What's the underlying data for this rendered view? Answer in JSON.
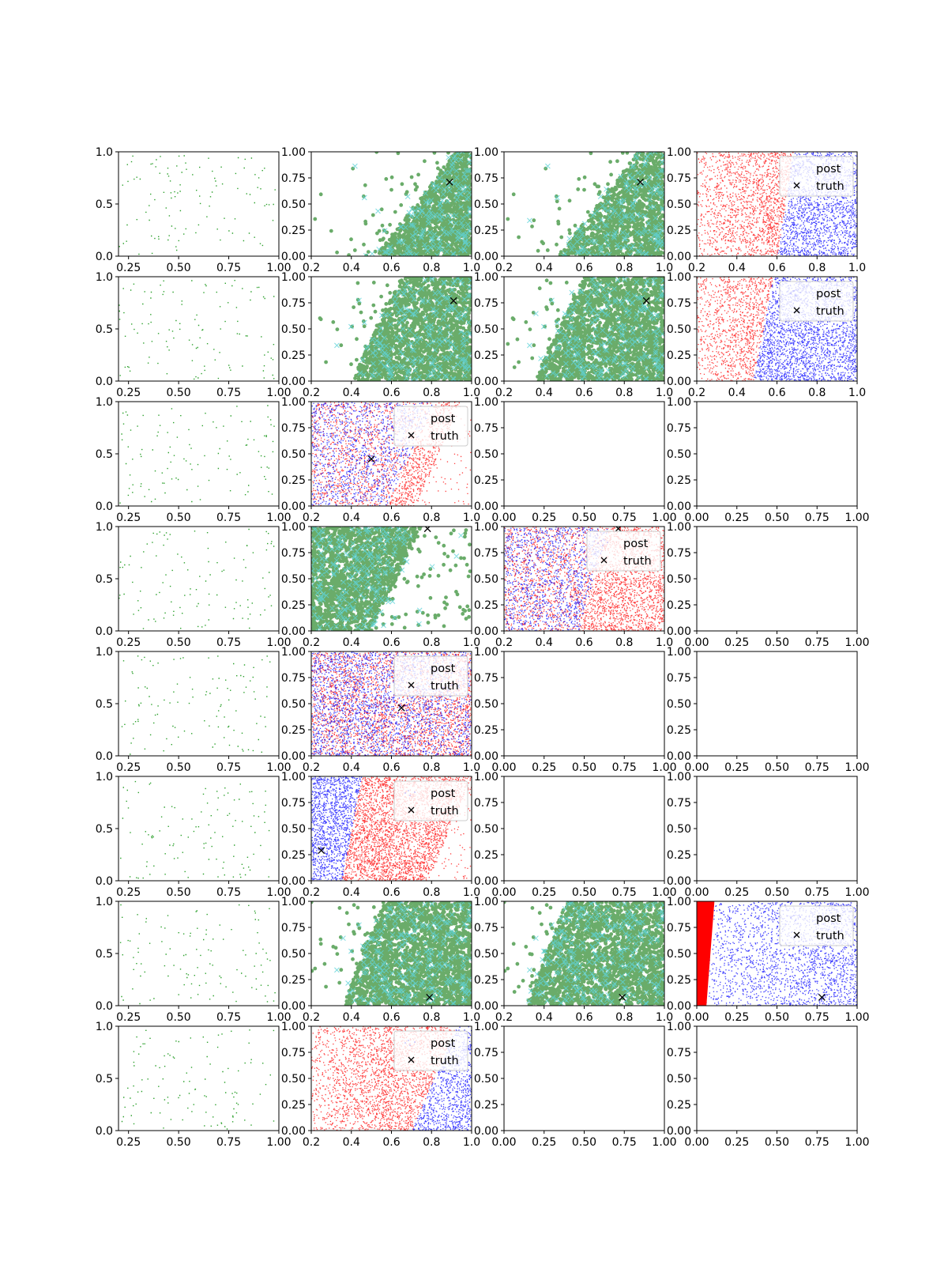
{
  "figure": {
    "rows": 8,
    "cols": 4,
    "legend_labels": [
      "post",
      "truth"
    ]
  },
  "chart_data": [
    {
      "row": 0,
      "col": 0,
      "type": "scatter",
      "style": "prior",
      "xlim": [
        0.2,
        1.0
      ],
      "ylim": [
        0.0,
        1.0
      ],
      "xticks": [
        "0.25",
        "0.50",
        "0.75",
        "1.00"
      ],
      "yticks": [
        "0.0",
        "0.5",
        "1.0"
      ]
    },
    {
      "row": 0,
      "col": 1,
      "type": "scatter",
      "style": "green",
      "truth": [
        0.89,
        0.71
      ],
      "boundary": {
        "slope": 0.4,
        "intercept": 0.6,
        "side": "right"
      },
      "xlim": [
        0.2,
        1.0
      ],
      "ylim": [
        0.0,
        1.0
      ],
      "xticks": [
        "0.2",
        "0.4",
        "0.6",
        "0.8",
        "1.0"
      ],
      "yticks": [
        "0.00",
        "0.25",
        "0.50",
        "0.75",
        "1.00"
      ]
    },
    {
      "row": 0,
      "col": 2,
      "type": "scatter",
      "style": "green",
      "truth": [
        0.88,
        0.71
      ],
      "boundary": {
        "slope": 0.4,
        "intercept": 0.55,
        "side": "right"
      },
      "xlim": [
        0.2,
        1.0
      ],
      "ylim": [
        0.0,
        1.0
      ],
      "xticks": [
        "0.2",
        "0.4",
        "0.6",
        "0.8",
        "1.0"
      ],
      "yticks": [
        "0.00",
        "0.25",
        "0.50",
        "0.75",
        "1.00"
      ]
    },
    {
      "row": 0,
      "col": 3,
      "type": "scatter",
      "style": "post",
      "legend": true,
      "truth": null,
      "boundary": {
        "slope": 0.08,
        "intercept": 0.6,
        "left": "red",
        "right": "blue"
      },
      "xlim": [
        0.2,
        1.0
      ],
      "ylim": [
        0.0,
        1.0
      ],
      "xticks": [
        "0.2",
        "0.4",
        "0.6",
        "0.8",
        "1.0"
      ],
      "yticks": [
        "0.00",
        "0.25",
        "0.50",
        "0.75",
        "1.00"
      ]
    },
    {
      "row": 1,
      "col": 0,
      "type": "scatter",
      "style": "prior",
      "xlim": [
        0.2,
        1.0
      ],
      "ylim": [
        0.0,
        1.0
      ],
      "xticks": [
        "0.25",
        "0.50",
        "0.75",
        "1.00"
      ],
      "yticks": [
        "0.0",
        "0.5",
        "1.0"
      ]
    },
    {
      "row": 1,
      "col": 1,
      "type": "scatter",
      "style": "green",
      "truth": [
        0.91,
        0.77
      ],
      "boundary": {
        "slope": 0.25,
        "intercept": 0.45,
        "side": "right"
      },
      "xlim": [
        0.2,
        1.0
      ],
      "ylim": [
        0.0,
        1.0
      ],
      "xticks": [
        "0.2",
        "0.4",
        "0.6",
        "0.8",
        "1.0"
      ],
      "yticks": [
        "0.00",
        "0.25",
        "0.50",
        "0.75",
        "1.00"
      ]
    },
    {
      "row": 1,
      "col": 2,
      "type": "scatter",
      "style": "green",
      "truth": [
        0.91,
        0.77
      ],
      "boundary": {
        "slope": 0.25,
        "intercept": 0.4,
        "side": "right"
      },
      "xlim": [
        0.2,
        1.0
      ],
      "ylim": [
        0.0,
        1.0
      ],
      "xticks": [
        "0.2",
        "0.4",
        "0.6",
        "0.8",
        "1.0"
      ],
      "yticks": [
        "0.00",
        "0.25",
        "0.50",
        "0.75",
        "1.00"
      ]
    },
    {
      "row": 1,
      "col": 3,
      "type": "scatter",
      "style": "post",
      "legend": true,
      "truth": null,
      "boundary": {
        "slope": 0.1,
        "intercept": 0.48,
        "left": "red",
        "right": "blue"
      },
      "xlim": [
        0.2,
        1.0
      ],
      "ylim": [
        0.0,
        1.0
      ],
      "xticks": [
        "0.2",
        "0.4",
        "0.6",
        "0.8",
        "1.0"
      ],
      "yticks": [
        "0.00",
        "0.25",
        "0.50",
        "0.75",
        "1.00"
      ]
    },
    {
      "row": 2,
      "col": 0,
      "type": "scatter",
      "style": "prior",
      "xlim": [
        0.2,
        1.0
      ],
      "ylim": [
        0.0,
        1.0
      ],
      "xticks": [
        "0.25",
        "0.50",
        "0.75",
        "1.00"
      ],
      "yticks": [
        "0.0",
        "0.5",
        "1.0"
      ]
    },
    {
      "row": 2,
      "col": 1,
      "type": "scatter",
      "style": "post",
      "legend": true,
      "truth": [
        0.5,
        0.45
      ],
      "boundary": {
        "slope": 0.25,
        "intercept": 0.57,
        "left": "mix",
        "right": "red",
        "cut": 0.72
      },
      "xlim": [
        0.2,
        1.0
      ],
      "ylim": [
        0.0,
        1.0
      ],
      "xticks": [
        "0.2",
        "0.4",
        "0.6",
        "0.8",
        "1.0"
      ],
      "yticks": [
        "0.00",
        "0.25",
        "0.50",
        "0.75",
        "1.00"
      ]
    },
    {
      "row": 2,
      "col": 2,
      "type": "empty",
      "xlim": [
        0.0,
        1.0
      ],
      "ylim": [
        0.0,
        1.0
      ],
      "xticks": [
        "0.00",
        "0.25",
        "0.50",
        "0.75",
        "1.00"
      ],
      "yticks": [
        "0.00",
        "0.25",
        "0.50",
        "0.75",
        "1.00"
      ]
    },
    {
      "row": 2,
      "col": 3,
      "type": "empty",
      "xlim": [
        0.0,
        1.0
      ],
      "ylim": [
        0.0,
        1.0
      ],
      "xticks": [
        "0.00",
        "0.25",
        "0.50",
        "0.75",
        "1.00"
      ],
      "yticks": [
        "0.00",
        "0.25",
        "0.50",
        "0.75",
        "1.00"
      ]
    },
    {
      "row": 3,
      "col": 0,
      "type": "scatter",
      "style": "prior",
      "xlim": [
        0.2,
        1.0
      ],
      "ylim": [
        0.0,
        1.0
      ],
      "xticks": [
        "0.25",
        "0.50",
        "0.75",
        "1.00"
      ],
      "yticks": [
        "0.0",
        "0.5",
        "1.0"
      ]
    },
    {
      "row": 3,
      "col": 1,
      "type": "scatter",
      "style": "green",
      "truth": [
        0.78,
        0.98
      ],
      "boundary": {
        "slope": 0.25,
        "intercept": 0.55,
        "side": "left"
      },
      "xlim": [
        0.2,
        1.0
      ],
      "ylim": [
        0.0,
        1.0
      ],
      "xticks": [
        "0.2",
        "0.4",
        "0.6",
        "0.8",
        "1.0"
      ],
      "yticks": [
        "0.00",
        "0.25",
        "0.50",
        "0.75",
        "1.00"
      ]
    },
    {
      "row": 3,
      "col": 2,
      "type": "scatter",
      "style": "post",
      "legend": true,
      "truth": [
        0.77,
        0.98
      ],
      "boundary": {
        "slope": 0.15,
        "intercept": 0.57,
        "left": "mix",
        "right": "red"
      },
      "xlim": [
        0.2,
        1.0
      ],
      "ylim": [
        0.0,
        1.0
      ],
      "xticks": [
        "0.2",
        "0.4",
        "0.6",
        "0.8",
        "1.0"
      ],
      "yticks": [
        "0.00",
        "0.25",
        "0.50",
        "0.75",
        "1.00"
      ]
    },
    {
      "row": 3,
      "col": 3,
      "type": "empty",
      "xlim": [
        0.0,
        1.0
      ],
      "ylim": [
        0.0,
        1.0
      ],
      "xticks": [
        "0.00",
        "0.25",
        "0.50",
        "0.75",
        "1.00"
      ],
      "yticks": [
        "0.00",
        "0.25",
        "0.50",
        "0.75",
        "1.00"
      ]
    },
    {
      "row": 4,
      "col": 0,
      "type": "scatter",
      "style": "prior",
      "xlim": [
        0.2,
        1.0
      ],
      "ylim": [
        0.0,
        1.0
      ],
      "xticks": [
        "0.25",
        "0.50",
        "0.75",
        "1.00"
      ],
      "yticks": [
        "0.0",
        "0.5",
        "1.0"
      ]
    },
    {
      "row": 4,
      "col": 1,
      "type": "scatter",
      "style": "post",
      "legend": true,
      "truth": [
        0.65,
        0.46
      ],
      "boundary": {
        "slope": 0.2,
        "intercept": 0.7,
        "left": "mix",
        "right": "mixred"
      },
      "xlim": [
        0.2,
        1.0
      ],
      "ylim": [
        0.0,
        1.0
      ],
      "xticks": [
        "0.2",
        "0.4",
        "0.6",
        "0.8",
        "1.0"
      ],
      "yticks": [
        "0.00",
        "0.25",
        "0.50",
        "0.75",
        "1.00"
      ]
    },
    {
      "row": 4,
      "col": 2,
      "type": "empty",
      "xlim": [
        0.0,
        1.0
      ],
      "ylim": [
        0.0,
        1.0
      ],
      "xticks": [
        "0.00",
        "0.25",
        "0.50",
        "0.75",
        "1.00"
      ],
      "yticks": [
        "0.00",
        "0.25",
        "0.50",
        "0.75",
        "1.00"
      ]
    },
    {
      "row": 4,
      "col": 3,
      "type": "empty",
      "xlim": [
        0.0,
        1.0
      ],
      "ylim": [
        0.0,
        1.0
      ],
      "xticks": [
        "0.00",
        "0.25",
        "0.50",
        "0.75",
        "1.00"
      ],
      "yticks": [
        "0.00",
        "0.25",
        "0.50",
        "0.75",
        "1.00"
      ]
    },
    {
      "row": 5,
      "col": 0,
      "type": "scatter",
      "style": "prior",
      "xlim": [
        0.2,
        1.0
      ],
      "ylim": [
        0.0,
        1.0
      ],
      "xticks": [
        "0.25",
        "0.50",
        "0.75",
        "1.00"
      ],
      "yticks": [
        "0.0",
        "0.5",
        "1.0"
      ]
    },
    {
      "row": 5,
      "col": 1,
      "type": "scatter",
      "style": "post",
      "legend": true,
      "truth": [
        0.25,
        0.29
      ],
      "boundary": {
        "slope": 0.1,
        "intercept": 0.35,
        "left": "blue",
        "right": "red",
        "cut": 0.78
      },
      "xlim": [
        0.2,
        1.0
      ],
      "ylim": [
        0.0,
        1.0
      ],
      "xticks": [
        "0.2",
        "0.4",
        "0.6",
        "0.8",
        "1.0"
      ],
      "yticks": [
        "0.00",
        "0.25",
        "0.50",
        "0.75",
        "1.00"
      ]
    },
    {
      "row": 5,
      "col": 2,
      "type": "empty",
      "xlim": [
        0.0,
        1.0
      ],
      "ylim": [
        0.0,
        1.0
      ],
      "xticks": [
        "0.00",
        "0.25",
        "0.50",
        "0.75",
        "1.00"
      ],
      "yticks": [
        "0.00",
        "0.25",
        "0.50",
        "0.75",
        "1.00"
      ]
    },
    {
      "row": 5,
      "col": 3,
      "type": "empty",
      "xlim": [
        0.0,
        1.0
      ],
      "ylim": [
        0.0,
        1.0
      ],
      "xticks": [
        "0.00",
        "0.25",
        "0.50",
        "0.75",
        "1.00"
      ],
      "yticks": [
        "0.00",
        "0.25",
        "0.50",
        "0.75",
        "1.00"
      ]
    },
    {
      "row": 6,
      "col": 0,
      "type": "scatter",
      "style": "prior",
      "xlim": [
        0.2,
        1.0
      ],
      "ylim": [
        0.0,
        1.0
      ],
      "xticks": [
        "0.25",
        "0.50",
        "0.75",
        "1.00"
      ],
      "yticks": [
        "0.0",
        "0.5",
        "1.0"
      ]
    },
    {
      "row": 6,
      "col": 1,
      "type": "scatter",
      "style": "green",
      "truth": [
        0.79,
        0.08
      ],
      "boundary": {
        "slope": 0.2,
        "intercept": 0.4,
        "side": "right"
      },
      "xlim": [
        0.2,
        1.0
      ],
      "ylim": [
        0.0,
        1.0
      ],
      "xticks": [
        "0.2",
        "0.4",
        "0.6",
        "0.8",
        "1.0"
      ],
      "yticks": [
        "0.00",
        "0.25",
        "0.50",
        "0.75",
        "1.00"
      ]
    },
    {
      "row": 6,
      "col": 2,
      "type": "scatter",
      "style": "green",
      "truth": [
        0.79,
        0.08
      ],
      "boundary": {
        "slope": 0.2,
        "intercept": 0.35,
        "side": "right"
      },
      "xlim": [
        0.2,
        1.0
      ],
      "ylim": [
        0.0,
        1.0
      ],
      "xticks": [
        "0.2",
        "0.4",
        "0.6",
        "0.8",
        "1.0"
      ],
      "yticks": [
        "0.00",
        "0.25",
        "0.50",
        "0.75",
        "1.00"
      ]
    },
    {
      "row": 6,
      "col": 3,
      "type": "scatter",
      "style": "post",
      "legend": true,
      "truth": [
        0.78,
        0.08
      ],
      "boundary": {
        "slope": 0.0,
        "intercept": 0.0,
        "left": "redwedge",
        "right": "blue"
      },
      "xlim": [
        0.0,
        1.0
      ],
      "ylim": [
        0.0,
        1.0
      ],
      "xticks": [
        "0.00",
        "0.25",
        "0.50",
        "0.75",
        "1.00"
      ],
      "yticks": [
        "0.00",
        "0.25",
        "0.50",
        "0.75",
        "1.00"
      ]
    },
    {
      "row": 7,
      "col": 0,
      "type": "scatter",
      "style": "prior",
      "xlim": [
        0.2,
        1.0
      ],
      "ylim": [
        0.0,
        1.0
      ],
      "xticks": [
        "0.25",
        "0.50",
        "0.75",
        "1.00"
      ],
      "yticks": [
        "0.0",
        "0.5",
        "1.0"
      ]
    },
    {
      "row": 7,
      "col": 1,
      "type": "scatter",
      "style": "post",
      "legend": true,
      "truth": null,
      "boundary": {
        "slope": 0.22,
        "intercept": 0.7,
        "left": "red",
        "right": "blue"
      },
      "xlim": [
        0.2,
        1.0
      ],
      "ylim": [
        0.0,
        1.0
      ],
      "xticks": [
        "0.2",
        "0.4",
        "0.6",
        "0.8",
        "1.0"
      ],
      "yticks": [
        "0.00",
        "0.25",
        "0.50",
        "0.75",
        "1.00"
      ]
    },
    {
      "row": 7,
      "col": 2,
      "type": "empty",
      "xlim": [
        0.0,
        1.0
      ],
      "ylim": [
        0.0,
        1.0
      ],
      "xticks": [
        "0.00",
        "0.25",
        "0.50",
        "0.75",
        "1.00"
      ],
      "yticks": [
        "0.00",
        "0.25",
        "0.50",
        "0.75",
        "1.00"
      ]
    },
    {
      "row": 7,
      "col": 3,
      "type": "empty",
      "xlim": [
        0.0,
        1.0
      ],
      "ylim": [
        0.0,
        1.0
      ],
      "xticks": [
        "0.00",
        "0.25",
        "0.50",
        "0.75",
        "1.00"
      ],
      "yticks": [
        "0.00",
        "0.25",
        "0.50",
        "0.75",
        "1.00"
      ]
    }
  ]
}
